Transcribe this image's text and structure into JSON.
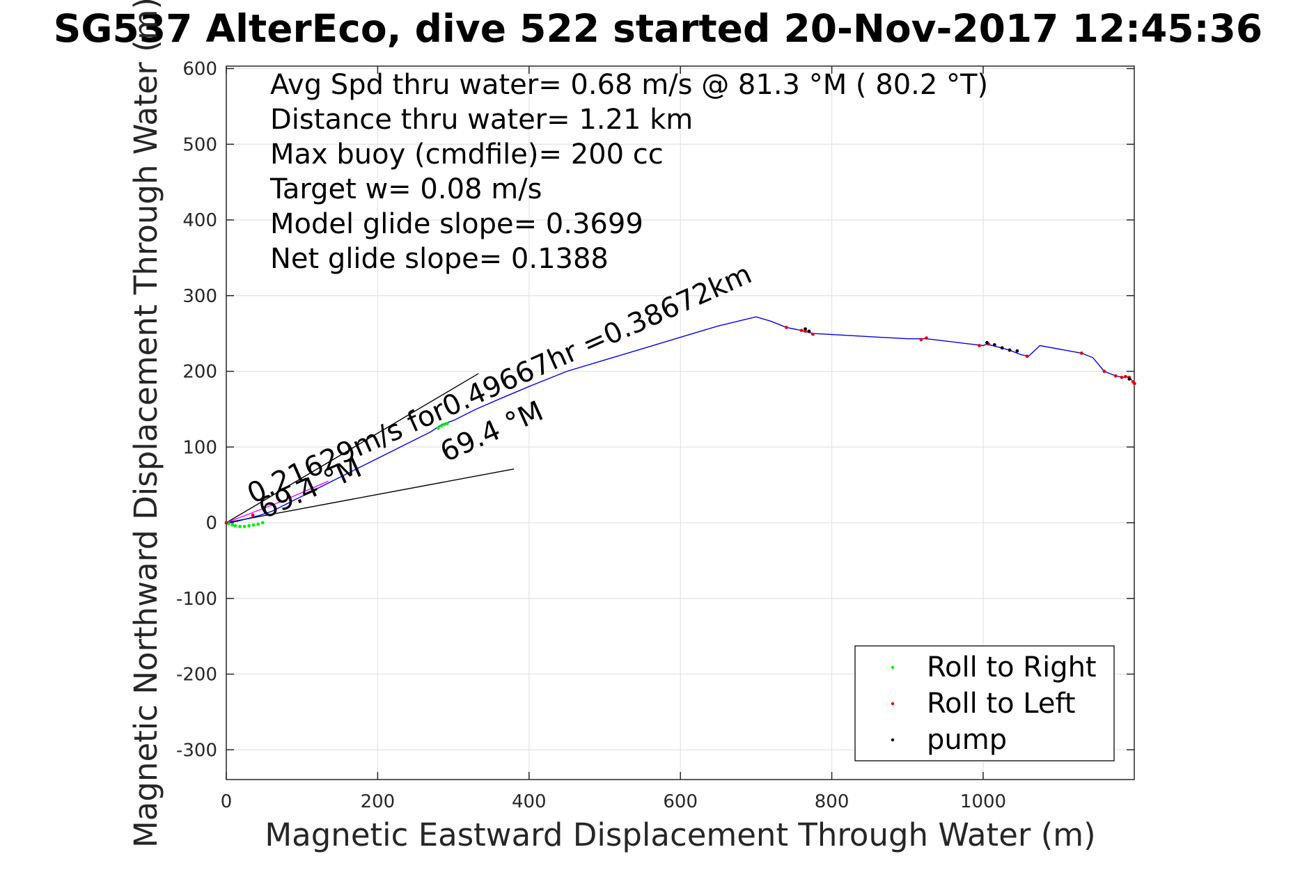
{
  "chart_data": {
    "type": "line",
    "title": "SG537 AlterEco, dive 522 started 20-Nov-2017 12:45:36",
    "xlabel": "Magnetic Eastward Displacement Through Water (m)",
    "ylabel": "Magnetic Northward Displacement Through Water (m)",
    "xlim": [
      0,
      1200
    ],
    "ylim": [
      -340,
      610
    ],
    "x_ticks": [
      0,
      200,
      400,
      600,
      800,
      1000
    ],
    "y_ticks": [
      -300,
      -200,
      -100,
      0,
      100,
      200,
      300,
      400,
      500,
      600
    ],
    "grid": true,
    "legend_position": "bottom-right",
    "stats": [
      "Avg Spd thru water=  0.68 m/s @  81.3 °M ( 80.2 °T)",
      "Distance thru water=  1.21 km",
      "Max buoy (cmdfile)= 200 cc",
      "Target w= 0.08 m/s",
      "Model glide slope= 0.3699",
      "Net glide slope= 0.1388"
    ],
    "annotations": [
      {
        "text": "0.21629m/s for0.49667hr =0.38672km",
        "x": 35,
        "y": 25,
        "angle": 24
      },
      {
        "text": "69.4 °M",
        "x": 50,
        "y": 5,
        "angle": 24
      },
      {
        "text": "69.4 °M",
        "x": 290,
        "y": 80,
        "angle": 24
      }
    ],
    "track": {
      "color": "#0000ee",
      "x": [
        0,
        15,
        30,
        45,
        60,
        90,
        120,
        150,
        180,
        210,
        240,
        270,
        285,
        300,
        330,
        360,
        400,
        450,
        500,
        550,
        600,
        650,
        700,
        720,
        740,
        760,
        775,
        900,
        925,
        1000,
        1005,
        1020,
        1035,
        1050,
        1060,
        1075,
        1130,
        1145,
        1160,
        1175,
        1185,
        1190,
        1195,
        1200
      ],
      "y": [
        0,
        2,
        6,
        10,
        15,
        30,
        45,
        60,
        75,
        90,
        105,
        120,
        130,
        135,
        150,
        163,
        180,
        200,
        215,
        230,
        245,
        260,
        272,
        266,
        258,
        254,
        250,
        243,
        243,
        234,
        236,
        232,
        228,
        222,
        220,
        234,
        224,
        218,
        200,
        194,
        192,
        193,
        190,
        183
      ]
    },
    "current_vector": {
      "color": "#ff00ff",
      "x": [
        0,
        70,
        135
      ],
      "y": [
        0,
        27,
        55
      ]
    },
    "cone_lines": {
      "color": "#000000",
      "lines": [
        {
          "x": [
            0,
            333
          ],
          "y": [
            0,
            197
          ]
        },
        {
          "x": [
            0,
            380
          ],
          "y": [
            0,
            71
          ]
        }
      ]
    },
    "series": [
      {
        "name": "Roll to Right",
        "color": "#00ee00",
        "x": [
          3,
          8,
          12,
          18,
          24,
          30,
          36,
          42,
          48,
          280,
          284,
          288,
          292
        ],
        "y": [
          -1,
          -3,
          -4,
          -5,
          -5,
          -4,
          -3,
          -2,
          0,
          125,
          128,
          130,
          131
        ]
      },
      {
        "name": "Roll to Left",
        "color": "#ee0000",
        "x": [
          0,
          35,
          740,
          760,
          765,
          775,
          918,
          925,
          995,
          1007,
          1058,
          1130,
          1160,
          1175,
          1183,
          1188,
          1193,
          1198,
          1200
        ],
        "y": [
          0,
          10,
          258,
          254,
          253,
          249,
          242,
          244,
          234,
          236,
          220,
          224,
          200,
          194,
          192,
          193,
          192,
          186,
          184
        ]
      },
      {
        "name": "pump",
        "color": "#000000",
        "x": [
          765,
          770,
          1005,
          1015,
          1025,
          1035,
          1045,
          1193
        ],
        "y": [
          256,
          253,
          238,
          235,
          231,
          228,
          227,
          190
        ]
      }
    ]
  }
}
